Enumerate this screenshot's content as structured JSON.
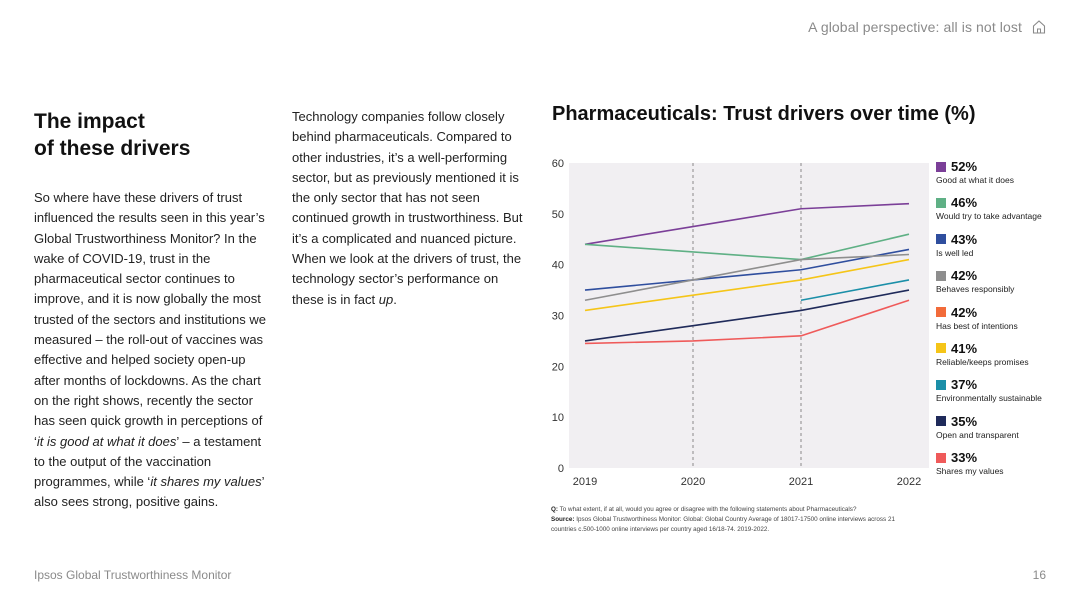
{
  "header": {
    "title": "A global perspective: all is not lost"
  },
  "heading": {
    "line1": "The impact",
    "line2": "of these drivers"
  },
  "col1": {
    "p1": "So where have these drivers of trust influenced the results seen in this year’s Global Trustworthiness Monitor? In the wake of COVID-19, trust in the pharmaceutical sector continues to improve, and it is now globally the most trusted of the sectors and institutions we measured – the roll-out of vaccines was effective and helped society open-up after months of lockdowns. As the chart on the right shows, recently the sector has seen quick growth in perceptions of ‘",
    "em1": "it is good at what it does",
    "p2": "’ – a testament to the output of the vaccination programmes, while ‘",
    "em2": "it shares my values",
    "p3": "’ also sees strong, positive gains."
  },
  "col2": {
    "text": "Technology companies follow closely behind pharmaceuticals. Compared to other industries, it’s a well-performing sector, but as previously mentioned it is the only sector that has not seen continued growth in trustworthiness. But it’s a complicated and nuanced picture. When we look at the drivers of trust, the technology sector’s performance on these is in fact ",
    "em": "up",
    "end": "."
  },
  "chart_data": {
    "type": "line",
    "title": "Pharmaceuticals: Trust drivers over time (%)",
    "x": [
      "2019",
      "2020",
      "2021",
      "2022"
    ],
    "ylim": [
      0,
      60
    ],
    "yticks": [
      0,
      10,
      20,
      30,
      40,
      50,
      60
    ],
    "grid": false,
    "background": "#f1eff2",
    "reference_lines_at": [
      "2020",
      "2021"
    ],
    "legend_position": "right",
    "series": [
      {
        "name": "Good at what it does",
        "color": "#7b3f98",
        "values": [
          44,
          47.5,
          51,
          52
        ],
        "end_label": "52%"
      },
      {
        "name": "Would try to take advantage",
        "color": "#5fb085",
        "values": [
          44,
          42.5,
          41,
          46
        ],
        "end_label": "46%"
      },
      {
        "name": "Is well led",
        "color": "#2f4e9e",
        "values": [
          35,
          37,
          39,
          43
        ],
        "end_label": "43%"
      },
      {
        "name": "Behaves responsibly",
        "color": "#8e8e8e",
        "values": [
          33,
          37,
          41,
          42
        ],
        "end_label": "42%"
      },
      {
        "name": "Has best of intentions",
        "color": "#f26b3a",
        "values": [
          null,
          null,
          null,
          null
        ],
        "end_label": "42%"
      },
      {
        "name": "Reliable/keeps promises",
        "color": "#f5c518",
        "values": [
          31,
          34,
          37,
          41
        ],
        "end_label": "41%"
      },
      {
        "name": "Environmentally sustainable",
        "color": "#1b8fa8",
        "values": [
          null,
          null,
          33,
          37
        ],
        "end_label": "37%"
      },
      {
        "name": "Open and transparent",
        "color": "#1f2a5a",
        "values": [
          25,
          28,
          31,
          35
        ],
        "end_label": "35%"
      },
      {
        "name": "Shares my values",
        "color": "#ef5a5a",
        "values": [
          24.5,
          25,
          26,
          33
        ],
        "end_label": "33%"
      }
    ]
  },
  "note": {
    "q_label": "Q:",
    "q_text": "To what extent, if at all, would you agree or disagree with the following statements about Pharmaceuticals?",
    "source_label": "Source:",
    "source_text": "Ipsos Global Trustworthiness Monitor: Global: Global Country Average of 18017-17500 online interviews across 21 countries c.500-1000 online interviews per country aged 16/18-74. 2019-2022."
  },
  "footer": {
    "left": "Ipsos Global Trustworthiness Monitor",
    "page": "16"
  }
}
